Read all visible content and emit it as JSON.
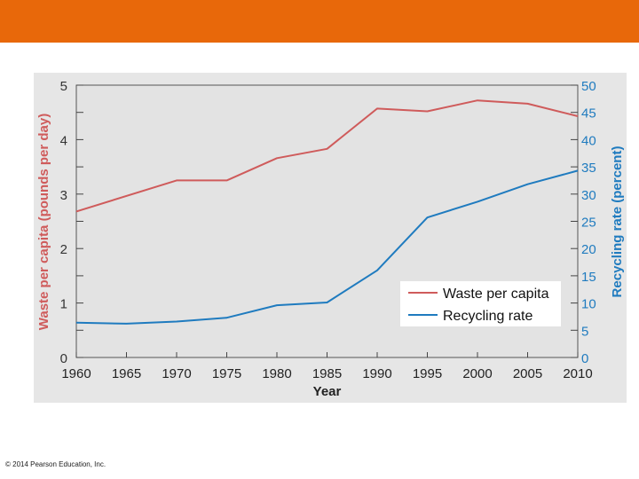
{
  "colors": {
    "top_bar": "#E8680A",
    "panel_bg": "#E6E6E6",
    "waste": "#CF5B5B",
    "recycling": "#1F7BBF",
    "axis_text": "#333333"
  },
  "copyright": "© 2014 Pearson Education, Inc.",
  "chart_data": {
    "type": "line",
    "title": "",
    "xlabel": "Year",
    "ylabel_left": "Waste per capita (pounds per day)",
    "ylabel_right": "Recycling rate (percent)",
    "x": [
      1960,
      1965,
      1970,
      1975,
      1980,
      1985,
      1990,
      1995,
      2000,
      2005,
      2010
    ],
    "x_ticks": [
      "1960",
      "1965",
      "1970",
      "1975",
      "1980",
      "1985",
      "1990",
      "1995",
      "2000",
      "2005",
      "2010"
    ],
    "xlim": [
      1960,
      2010
    ],
    "ylim_left": [
      0,
      5
    ],
    "ylim_right": [
      0,
      50
    ],
    "left_ticks": [
      "0",
      "1",
      "2",
      "3",
      "4",
      "5"
    ],
    "right_ticks": [
      "0",
      "5",
      "10",
      "15",
      "20",
      "25",
      "30",
      "35",
      "40",
      "45",
      "50"
    ],
    "legend_position": "bottom-right",
    "series": [
      {
        "name": "Waste per capita",
        "axis": "left",
        "points": [
          [
            1960,
            2.68
          ],
          [
            1970,
            3.25
          ],
          [
            1975,
            3.25
          ],
          [
            1980,
            3.66
          ],
          [
            1985,
            3.83
          ],
          [
            1990,
            4.57
          ],
          [
            1995,
            4.52
          ],
          [
            2000,
            4.72
          ],
          [
            2005,
            4.66
          ],
          [
            2010,
            4.43
          ]
        ]
      },
      {
        "name": "Recycling rate",
        "axis": "right",
        "points": [
          [
            1960,
            6.4
          ],
          [
            1965,
            6.2
          ],
          [
            1970,
            6.6
          ],
          [
            1975,
            7.3
          ],
          [
            1980,
            9.6
          ],
          [
            1985,
            10.1
          ],
          [
            1990,
            16.0
          ],
          [
            1995,
            25.7
          ],
          [
            2000,
            28.6
          ],
          [
            2005,
            31.8
          ],
          [
            2010,
            34.3
          ]
        ]
      }
    ]
  }
}
